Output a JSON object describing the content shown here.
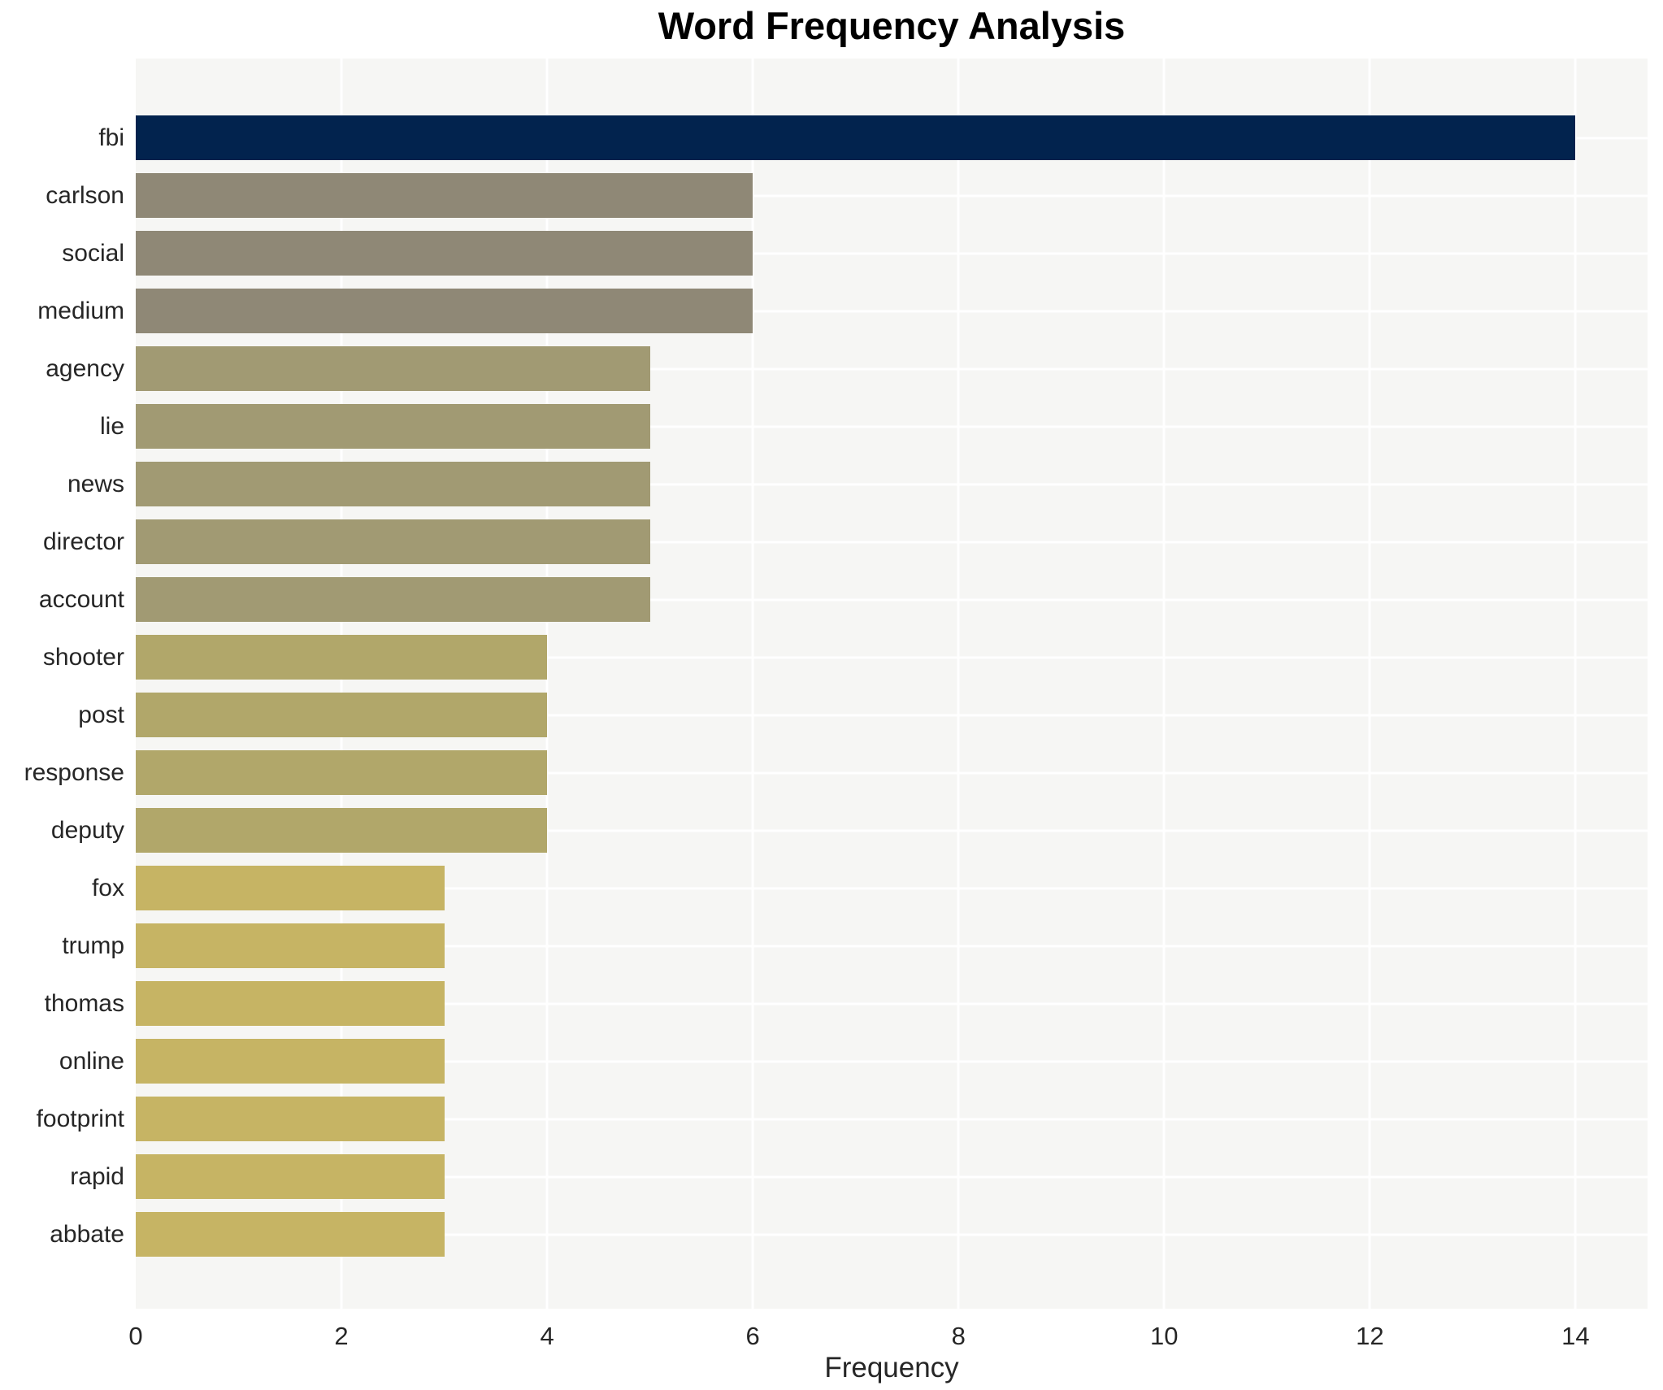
{
  "title": "Word Frequency Analysis",
  "xlabel": "Frequency",
  "chart_data": {
    "type": "bar",
    "orientation": "horizontal",
    "title": "Word Frequency Analysis",
    "xlabel": "Frequency",
    "ylabel": "",
    "categories": [
      "fbi",
      "carlson",
      "social",
      "medium",
      "agency",
      "lie",
      "news",
      "director",
      "account",
      "shooter",
      "post",
      "response",
      "deputy",
      "fox",
      "trump",
      "thomas",
      "online",
      "footprint",
      "rapid",
      "abbate"
    ],
    "values": [
      14,
      6,
      6,
      6,
      5,
      5,
      5,
      5,
      5,
      4,
      4,
      4,
      4,
      3,
      3,
      3,
      3,
      3,
      3,
      3
    ],
    "bar_colors": [
      "#02234e",
      "#8f8876",
      "#8f8876",
      "#8f8876",
      "#a19a73",
      "#a19a73",
      "#a19a73",
      "#a19a73",
      "#a19a73",
      "#b1a76a",
      "#b1a76a",
      "#b1a76a",
      "#b1a76a",
      "#c6b464",
      "#c6b464",
      "#c6b464",
      "#c6b464",
      "#c6b464",
      "#c6b464",
      "#c6b464"
    ],
    "xticks": [
      0,
      2,
      4,
      6,
      8,
      10,
      12,
      14
    ],
    "xlim": [
      0,
      14.7
    ],
    "grid": true,
    "legend": "none",
    "plot_background": "#f6f6f4",
    "grid_color": "#ffffff",
    "tick_label_color": "#262626",
    "title_color": "#000000"
  }
}
